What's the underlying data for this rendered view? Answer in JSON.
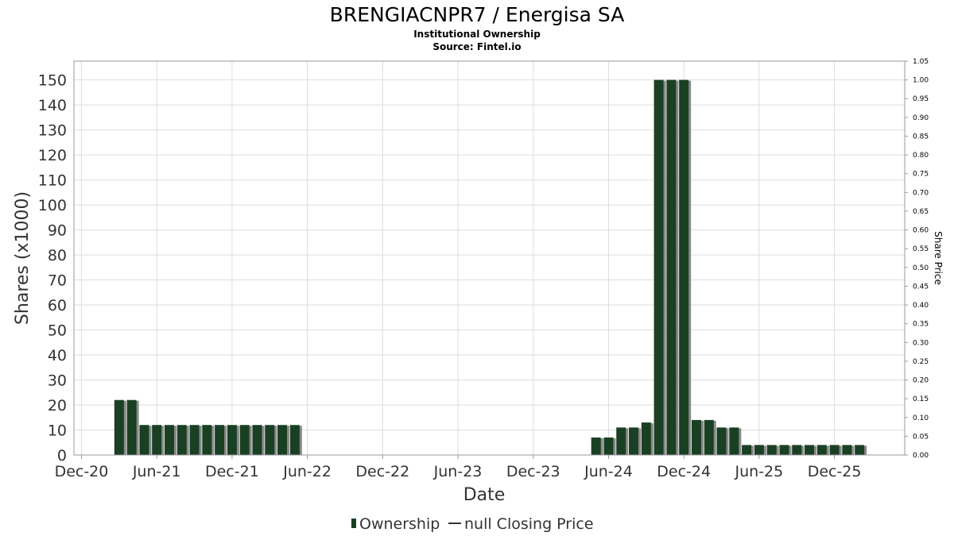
{
  "chart_data": {
    "type": "bar",
    "title": "BRENGIACNPR7 / Energisa SA",
    "subtitle": "Institutional Ownership",
    "source": "Source: Fintel.io",
    "xlabel": "Date",
    "ylabel": "Shares (x1000)",
    "y2label": "Share Price",
    "ylim": [
      0,
      157.5
    ],
    "y2lim": [
      0,
      1.05
    ],
    "yticks": [
      0,
      10,
      20,
      30,
      40,
      50,
      60,
      70,
      80,
      90,
      100,
      110,
      120,
      130,
      140,
      150
    ],
    "y2ticks": [
      "0.00",
      "0.05",
      "0.10",
      "0.15",
      "0.20",
      "0.25",
      "0.30",
      "0.35",
      "0.40",
      "0.45",
      "0.50",
      "0.55",
      "0.60",
      "0.65",
      "0.70",
      "0.75",
      "0.80",
      "0.85",
      "0.90",
      "0.95",
      "1.00",
      "1.05"
    ],
    "xticks": [
      {
        "label": "Dec-20",
        "month": 0
      },
      {
        "label": "Jun-21",
        "month": 6
      },
      {
        "label": "Dec-21",
        "month": 12
      },
      {
        "label": "Jun-22",
        "month": 18
      },
      {
        "label": "Dec-22",
        "month": 24
      },
      {
        "label": "Jun-23",
        "month": 30
      },
      {
        "label": "Dec-23",
        "month": 36
      },
      {
        "label": "Jun-24",
        "month": 42
      },
      {
        "label": "Dec-24",
        "month": 48
      },
      {
        "label": "Jun-25",
        "month": 54
      },
      {
        "label": "Dec-25",
        "month": 60
      }
    ],
    "xlim_months": [
      -0.6,
      65.6
    ],
    "grid": true,
    "legend": {
      "position": "bottom",
      "entries": [
        "Ownership",
        "null Closing Price"
      ]
    },
    "colors": {
      "bar": "#1a4023",
      "shadow": "#888888",
      "grid": "#dddddd"
    },
    "series": [
      {
        "name": "Ownership",
        "points": [
          {
            "date": "Mar-21",
            "month": 3,
            "value": 22
          },
          {
            "date": "Apr-21",
            "month": 4,
            "value": 22
          },
          {
            "date": "May-21",
            "month": 5,
            "value": 12
          },
          {
            "date": "Jun-21",
            "month": 6,
            "value": 12
          },
          {
            "date": "Jul-21",
            "month": 7,
            "value": 12
          },
          {
            "date": "Aug-21",
            "month": 8,
            "value": 12
          },
          {
            "date": "Sep-21",
            "month": 9,
            "value": 12
          },
          {
            "date": "Oct-21",
            "month": 10,
            "value": 12
          },
          {
            "date": "Nov-21",
            "month": 11,
            "value": 12
          },
          {
            "date": "Dec-21",
            "month": 12,
            "value": 12
          },
          {
            "date": "Jan-22",
            "month": 13,
            "value": 12
          },
          {
            "date": "Feb-22",
            "month": 14,
            "value": 12
          },
          {
            "date": "Mar-22",
            "month": 15,
            "value": 12
          },
          {
            "date": "Apr-22",
            "month": 16,
            "value": 12
          },
          {
            "date": "May-22",
            "month": 17,
            "value": 12
          },
          {
            "date": "May-24",
            "month": 41,
            "value": 7
          },
          {
            "date": "Jun-24",
            "month": 42,
            "value": 7
          },
          {
            "date": "Jul-24",
            "month": 43,
            "value": 11
          },
          {
            "date": "Aug-24",
            "month": 44,
            "value": 11
          },
          {
            "date": "Sep-24",
            "month": 45,
            "value": 13
          },
          {
            "date": "Oct-24",
            "month": 46,
            "value": 150
          },
          {
            "date": "Nov-24",
            "month": 47,
            "value": 150
          },
          {
            "date": "Dec-24",
            "month": 48,
            "value": 150
          },
          {
            "date": "Jan-25",
            "month": 49,
            "value": 14
          },
          {
            "date": "Feb-25",
            "month": 50,
            "value": 14
          },
          {
            "date": "Mar-25",
            "month": 51,
            "value": 11
          },
          {
            "date": "Apr-25",
            "month": 52,
            "value": 11
          },
          {
            "date": "May-25",
            "month": 53,
            "value": 4
          },
          {
            "date": "Jun-25",
            "month": 54,
            "value": 4
          },
          {
            "date": "Jul-25",
            "month": 55,
            "value": 4
          },
          {
            "date": "Aug-25",
            "month": 56,
            "value": 4
          },
          {
            "date": "Sep-25",
            "month": 57,
            "value": 4
          },
          {
            "date": "Oct-25",
            "month": 58,
            "value": 4
          },
          {
            "date": "Nov-25",
            "month": 59,
            "value": 4
          },
          {
            "date": "Dec-25",
            "month": 60,
            "value": 4
          },
          {
            "date": "Jan-26",
            "month": 61,
            "value": 4
          },
          {
            "date": "Feb-26",
            "month": 62,
            "value": 4
          }
        ]
      }
    ]
  }
}
